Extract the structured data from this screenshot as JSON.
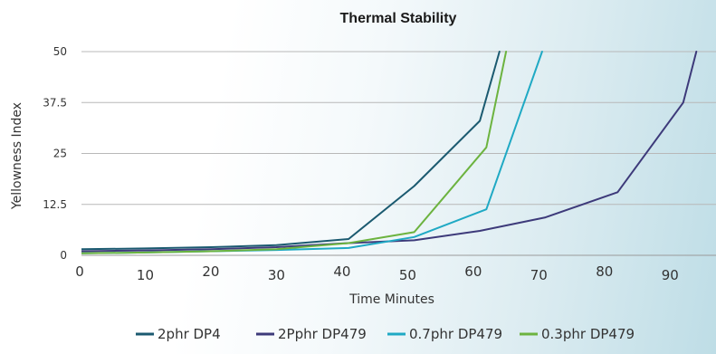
{
  "chart_data": {
    "type": "line",
    "title": "Thermal Stability",
    "xlabel": "Time Minutes",
    "ylabel": "Yellowness Index",
    "xlim": [
      0,
      97
    ],
    "ylim": [
      0,
      50
    ],
    "x_ticks": [
      0,
      10,
      20,
      30,
      40,
      50,
      60,
      70,
      80,
      90
    ],
    "y_ticks": [
      0,
      12.5,
      25,
      37.5,
      50
    ],
    "y_tick_labels": [
      "0",
      "12.5",
      "25",
      "37.5",
      "50"
    ],
    "grid": "horizontal",
    "legend_position": "bottom",
    "series": [
      {
        "name": "2phr DP4",
        "color": "#1b5a70",
        "x": [
          0,
          10,
          20,
          30,
          41,
          51,
          61,
          64
        ],
        "y": [
          1.5,
          1.7,
          2.0,
          2.5,
          4.0,
          17.0,
          33.0,
          50.0
        ]
      },
      {
        "name": "2Pphr DP479",
        "color": "#3d3a7a",
        "x": [
          0,
          10,
          20,
          30,
          41,
          51,
          61,
          71,
          82,
          92,
          94
        ],
        "y": [
          1.0,
          1.2,
          1.5,
          2.0,
          3.0,
          3.7,
          6.0,
          9.3,
          15.5,
          37.5,
          50.0
        ]
      },
      {
        "name": "0.7phr DP479",
        "color": "#1fa9c4",
        "x": [
          0,
          10,
          20,
          30,
          41,
          51,
          62,
          70.5
        ],
        "y": [
          0.5,
          0.7,
          1.0,
          1.3,
          1.8,
          4.5,
          11.3,
          50.0
        ]
      },
      {
        "name": "0.3phr DP479",
        "color": "#6cb33f",
        "x": [
          0,
          10,
          20,
          30,
          41,
          51,
          62,
          65
        ],
        "y": [
          0.5,
          0.7,
          1.0,
          1.5,
          3.0,
          5.7,
          26.5,
          50.0
        ]
      }
    ]
  }
}
